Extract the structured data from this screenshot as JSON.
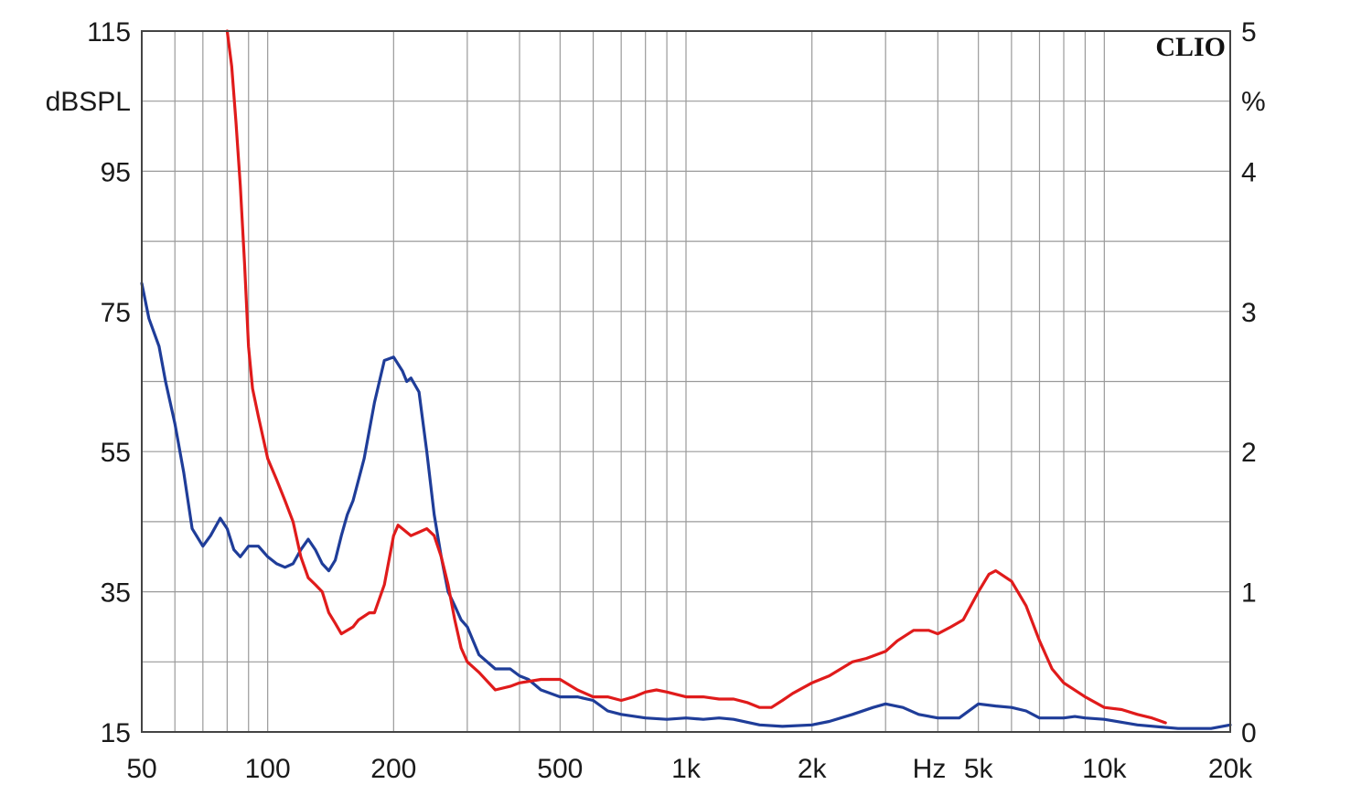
{
  "chart_data": {
    "type": "line",
    "brand": "CLIO",
    "x_scale": "log",
    "xlim": [
      50,
      20000
    ],
    "x_tick_labels": [
      {
        "v": 50,
        "t": "50"
      },
      {
        "v": 100,
        "t": "100"
      },
      {
        "v": 200,
        "t": "200"
      },
      {
        "v": 500,
        "t": "500"
      },
      {
        "v": 1000,
        "t": "1k"
      },
      {
        "v": 2000,
        "t": "2k"
      },
      {
        "v": 5000,
        "t": "5k"
      },
      {
        "v": 10000,
        "t": "10k"
      },
      {
        "v": 20000,
        "t": "20k"
      }
    ],
    "xlabel": "Hz",
    "y_left": {
      "label": "dBSPL",
      "lim": [
        15,
        115
      ],
      "ticks": [
        "115",
        "95",
        "75",
        "55",
        "35",
        "15"
      ],
      "tick_values": [
        115,
        95,
        75,
        55,
        35,
        15
      ]
    },
    "y_right": {
      "label": "%",
      "lim": [
        0,
        5
      ],
      "ticks": [
        "5",
        "4",
        "3",
        "2",
        "1",
        "0"
      ],
      "tick_values": [
        5,
        4,
        3,
        2,
        1,
        0
      ]
    },
    "grid": true,
    "series": [
      {
        "color": "#1f3d99",
        "axis": "left",
        "x": [
          50,
          52,
          55,
          57,
          60,
          63,
          66,
          70,
          73,
          77,
          80,
          83,
          86,
          90,
          95,
          100,
          105,
          110,
          115,
          120,
          125,
          130,
          135,
          140,
          145,
          150,
          155,
          160,
          170,
          180,
          190,
          200,
          210,
          215,
          220,
          230,
          240,
          250,
          260,
          270,
          280,
          290,
          300,
          320,
          350,
          380,
          400,
          420,
          450,
          500,
          550,
          600,
          650,
          700,
          800,
          900,
          1000,
          1100,
          1200,
          1300,
          1500,
          1700,
          2000,
          2200,
          2500,
          2800,
          3000,
          3300,
          3600,
          4000,
          4500,
          5000,
          5500,
          6000,
          6500,
          7000,
          7500,
          8000,
          8500,
          9000,
          10000,
          12000,
          15000,
          18000,
          20000
        ],
        "y": [
          79,
          74,
          70,
          65,
          59,
          52,
          44,
          41.5,
          43,
          45.5,
          44,
          41,
          40,
          41.5,
          41.5,
          40,
          39,
          38.5,
          39,
          41,
          42.5,
          41,
          39,
          38,
          39.5,
          43,
          46,
          48,
          54,
          62,
          68,
          68.5,
          66.5,
          65,
          65.5,
          63.5,
          55,
          46,
          40,
          35,
          33,
          31,
          30,
          26,
          24,
          24,
          23,
          22.5,
          21,
          20,
          20,
          19.5,
          18,
          17.5,
          17,
          16.8,
          17,
          16.8,
          17,
          16.8,
          16,
          15.8,
          16,
          16.5,
          17.5,
          18.5,
          19,
          18.5,
          17.5,
          17,
          17,
          19,
          18.7,
          18.5,
          18,
          17,
          17,
          17,
          17.2,
          17,
          16.8,
          16,
          15.5,
          15.5,
          16
        ]
      },
      {
        "color": "#e01b1b",
        "axis": "left",
        "x": [
          80,
          82,
          84,
          86,
          88,
          90,
          92,
          95,
          100,
          105,
          110,
          115,
          120,
          125,
          130,
          135,
          140,
          145,
          150,
          155,
          160,
          165,
          170,
          175,
          180,
          190,
          200,
          205,
          210,
          220,
          230,
          240,
          250,
          260,
          270,
          280,
          290,
          300,
          320,
          350,
          380,
          400,
          450,
          500,
          550,
          600,
          650,
          700,
          750,
          800,
          850,
          900,
          1000,
          1100,
          1200,
          1300,
          1400,
          1500,
          1600,
          1700,
          1800,
          2000,
          2200,
          2500,
          2700,
          3000,
          3200,
          3500,
          3800,
          4000,
          4300,
          4600,
          5000,
          5300,
          5500,
          6000,
          6500,
          7000,
          7500,
          8000,
          9000,
          10000,
          11000,
          12000,
          13000,
          14000
        ],
        "y": [
          115,
          110,
          102,
          93,
          82,
          70,
          64,
          60,
          54,
          51,
          48,
          45,
          40,
          37,
          36,
          35,
          32,
          30.5,
          29,
          29.5,
          30,
          31,
          31.5,
          32,
          32,
          36,
          43,
          44.5,
          44,
          43,
          43.5,
          44,
          43,
          40,
          36,
          31,
          27,
          25,
          23.5,
          21,
          21.5,
          22,
          22.5,
          22.5,
          21,
          20,
          20,
          19.5,
          20,
          20.7,
          21,
          20.7,
          20,
          20,
          19.7,
          19.7,
          19.2,
          18.5,
          18.5,
          19.5,
          20.5,
          22,
          23,
          25,
          25.5,
          26.5,
          28,
          29.5,
          29.5,
          29,
          30,
          31,
          35,
          37.5,
          38,
          36.5,
          33,
          28,
          24,
          22,
          20,
          18.5,
          18.2,
          17.5,
          17,
          16.3
        ]
      }
    ]
  }
}
